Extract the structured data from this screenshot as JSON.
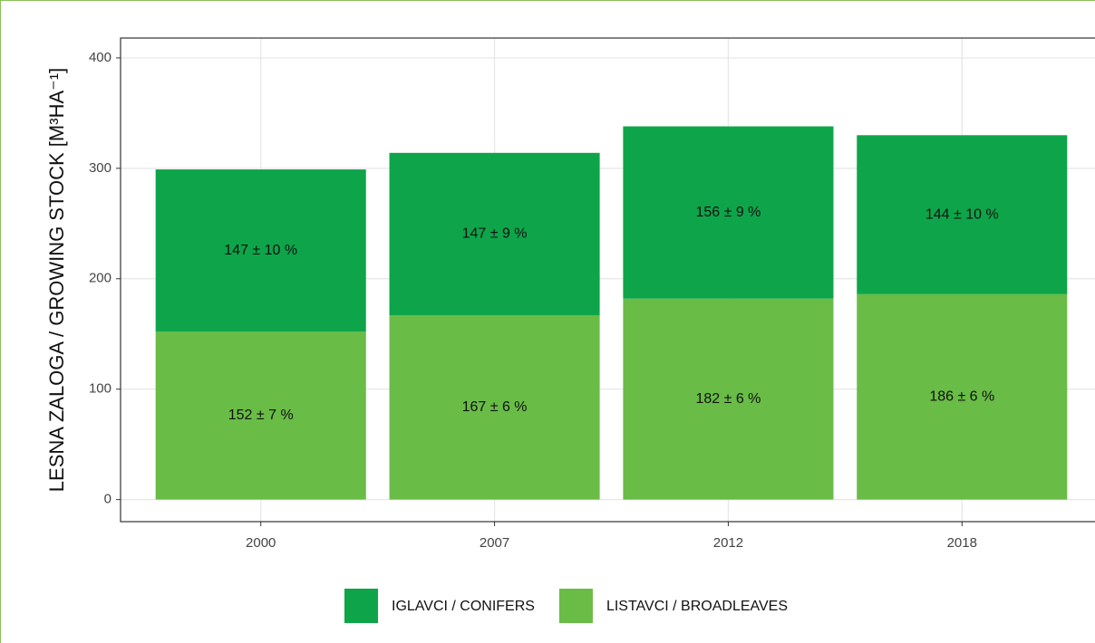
{
  "chart_data": {
    "type": "bar",
    "stacked": true,
    "y_label": "LESNA ZALOGA / GROWING STOCK [M³HA⁻¹]",
    "categories": [
      "2000",
      "2007",
      "2012",
      "2018"
    ],
    "series": [
      {
        "name": "IGLAVCI / CONIFERS",
        "color": "#0ea54a",
        "values": [
          147,
          147,
          156,
          144
        ],
        "value_labels": [
          "147 ± 10 %",
          "147 ± 9 %",
          "156 ± 9 %",
          "144 ± 10 %"
        ]
      },
      {
        "name": "LISTAVCI / BROADLEAVES",
        "color": "#69bc46",
        "values": [
          152,
          167,
          182,
          186
        ],
        "value_labels": [
          "152 ± 7 %",
          "167 ± 6 %",
          "182 ± 6 %",
          "186 ± 6 %"
        ]
      }
    ],
    "ylim": [
      -20,
      418
    ],
    "yticks": [
      0,
      100,
      200,
      300,
      400
    ],
    "grid": true,
    "legend": "bottom"
  }
}
